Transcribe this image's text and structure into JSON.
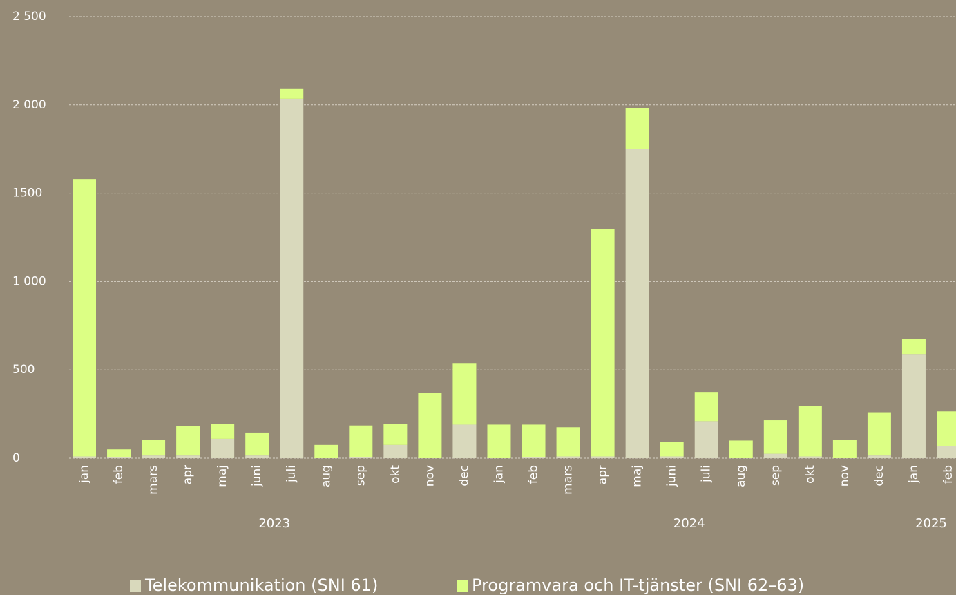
{
  "chart_data": {
    "type": "stacked_bar",
    "categories": [
      "jan",
      "feb",
      "mars",
      "apr",
      "maj",
      "juni",
      "juli",
      "aug",
      "sep",
      "okt",
      "nov",
      "dec",
      "jan",
      "feb",
      "mars",
      "apr",
      "maj",
      "juni",
      "juli",
      "aug",
      "sep",
      "okt",
      "nov",
      "dec",
      "jan",
      "feb"
    ],
    "groups": [
      {
        "label": "2023",
        "size": 12
      },
      {
        "label": "2024",
        "size": 12
      },
      {
        "label": "2025",
        "size": 2
      }
    ],
    "series": [
      {
        "name": "Telekommunikation (SNI 61)",
        "color": "#d9d9bc",
        "values": [
          10,
          5,
          15,
          15,
          110,
          15,
          2035,
          0,
          5,
          75,
          0,
          190,
          0,
          5,
          10,
          10,
          1750,
          10,
          210,
          0,
          25,
          10,
          0,
          15,
          590,
          70
        ]
      },
      {
        "name": "Programvara och IT-tjänster (SNI 62–63)",
        "color": "#dcff84",
        "values": [
          1570,
          45,
          90,
          165,
          85,
          130,
          55,
          75,
          180,
          120,
          370,
          345,
          190,
          185,
          165,
          1285,
          230,
          80,
          165,
          100,
          190,
          285,
          105,
          245,
          85,
          195
        ]
      }
    ],
    "ylim": [
      0,
      2500
    ],
    "yticks": [
      0,
      500,
      {
        "value": 1000,
        "label": "1 000"
      },
      1500,
      {
        "value": 2000,
        "label": "2 000"
      },
      {
        "value": 2500,
        "label": "2 500"
      }
    ],
    "grid": true,
    "legend": "bottom"
  }
}
